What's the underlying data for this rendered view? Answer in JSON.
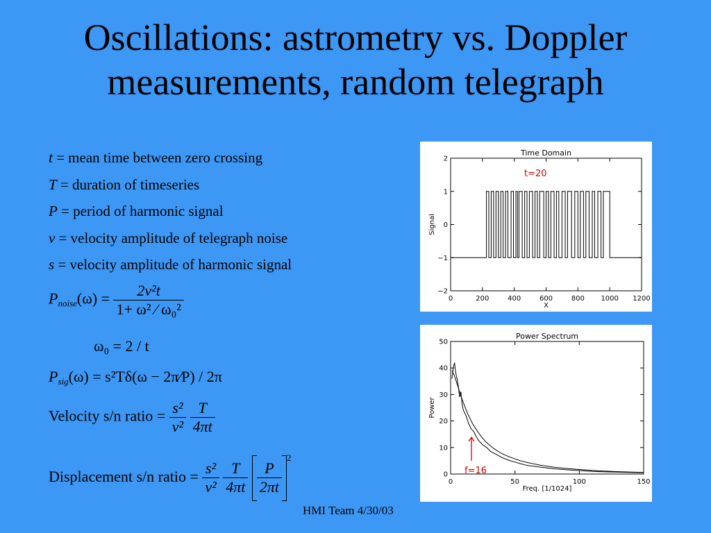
{
  "slide": {
    "title_line1": "Oscillations: astrometry vs. Doppler",
    "title_line2": "measurements, random telegraph",
    "footer": "HMI Team 4/30/03"
  },
  "definitions": [
    {
      "symbol": "t",
      "text": "= mean time between zero crossing"
    },
    {
      "symbol": "T",
      "text": "= duration of  timeseries"
    },
    {
      "symbol": "P",
      "text": "= period of  harmonic signal"
    },
    {
      "symbol": "v",
      "text": "= velocity amplitude of  telegraph noise"
    },
    {
      "symbol": "s",
      "text": "= velocity amplitude of  harmonic signal"
    }
  ],
  "equations": {
    "pnoise_lhs": "(ω) =",
    "pnoise_sub": "noise",
    "pnoise_num": "2v²t",
    "pnoise_den": "1+ ω² ⁄ ω₀²",
    "omega0": "ω₀ = 2 / t",
    "psig_sub": "sig",
    "psig_rhs": "(ω) = s²Tδ(ω − 2π⁄P) / 2π",
    "vel_label": "Velocity s/n ratio =",
    "vel_f1_num": "s²",
    "vel_f1_den": "v²",
    "vel_f2_num": "T",
    "vel_f2_den": "4πt",
    "disp_label": "Displacement s/n ratio =",
    "disp_f1_num": "s²",
    "disp_f1_den": "v²",
    "disp_f2_num": "T",
    "disp_f2_den": "4πt",
    "disp_f3_num": "P",
    "disp_f3_den": "2πt",
    "disp_exp": "2"
  },
  "chart_data": [
    {
      "type": "line",
      "title": "Time Domain",
      "xlabel": "X",
      "ylabel": "Signal",
      "xlim": [
        0,
        1200
      ],
      "ylim": [
        -2,
        2
      ],
      "xticks": [
        "0",
        "200",
        "400",
        "600",
        "800",
        "1000",
        "1200"
      ],
      "yticks": [
        "−2",
        "−1",
        "0",
        "1",
        "2"
      ],
      "annotation": "t=20",
      "annotation_color": "#d40000",
      "x": [
        0,
        225,
        225,
        240,
        240,
        255,
        255,
        270,
        270,
        285,
        285,
        300,
        300,
        315,
        315,
        330,
        330,
        345,
        345,
        360,
        360,
        380,
        380,
        395,
        395,
        410,
        410,
        420,
        420,
        430,
        430,
        450,
        450,
        465,
        465,
        480,
        480,
        495,
        495,
        515,
        515,
        530,
        530,
        545,
        545,
        560,
        560,
        585,
        585,
        600,
        600,
        615,
        615,
        630,
        630,
        650,
        650,
        665,
        665,
        680,
        680,
        700,
        700,
        720,
        720,
        735,
        735,
        760,
        760,
        780,
        780,
        800,
        800,
        815,
        815,
        835,
        835,
        850,
        850,
        870,
        870,
        890,
        890,
        905,
        905,
        925,
        925,
        945,
        945,
        960,
        960,
        1000,
        1000,
        1200
      ],
      "y": [
        -1,
        -1,
        1,
        1,
        -1,
        -1,
        1,
        1,
        -1,
        -1,
        1,
        1,
        -1,
        -1,
        1,
        1,
        -1,
        -1,
        1,
        1,
        -1,
        -1,
        1,
        1,
        -1,
        -1,
        1,
        1,
        -1,
        -1,
        1,
        1,
        -1,
        -1,
        1,
        1,
        -1,
        -1,
        1,
        1,
        -1,
        -1,
        1,
        1,
        -1,
        -1,
        1,
        1,
        -1,
        -1,
        1,
        1,
        -1,
        -1,
        1,
        1,
        -1,
        -1,
        1,
        1,
        -1,
        -1,
        1,
        1,
        -1,
        -1,
        1,
        1,
        -1,
        -1,
        1,
        1,
        -1,
        -1,
        1,
        1,
        -1,
        -1,
        1,
        1,
        -1,
        -1,
        1,
        1,
        -1,
        -1,
        1,
        1,
        -1,
        -1,
        1,
        1,
        -1,
        -1
      ]
    },
    {
      "type": "line",
      "title": "Power Spectrum",
      "xlabel": "Freq. [1/1024]",
      "ylabel": "Power",
      "xlim": [
        0,
        150
      ],
      "ylim": [
        0,
        50
      ],
      "xticks": [
        "0",
        "50",
        "100",
        "150"
      ],
      "yticks": [
        "0",
        "10",
        "20",
        "30",
        "40",
        "50"
      ],
      "annotation": "f=16",
      "annotation_color": "#d40000",
      "series": [
        {
          "x": [
            1,
            2,
            3,
            4,
            5,
            6,
            7,
            8,
            9,
            10,
            12,
            14,
            16,
            18,
            20,
            22,
            25,
            28,
            31,
            35,
            40,
            45,
            50,
            55,
            60,
            70,
            80,
            90,
            100,
            110,
            120,
            130,
            140,
            150
          ],
          "y": [
            36,
            40,
            42,
            38,
            36,
            33,
            29,
            31,
            26,
            24,
            22,
            19,
            17,
            16,
            14,
            12.5,
            11,
            10,
            8.5,
            7.5,
            6.2,
            5.2,
            4.5,
            3.8,
            3.2,
            2.6,
            2.0,
            1.6,
            1.3,
            1.0,
            0.8,
            0.7,
            0.6,
            0.5
          ]
        },
        {
          "x": [
            1,
            3,
            5,
            7,
            9,
            11,
            13,
            15,
            17,
            19,
            21,
            24,
            27,
            30,
            33,
            37,
            41,
            45,
            50,
            55,
            60,
            70,
            80,
            90,
            100,
            115,
            130,
            150
          ],
          "y": [
            39,
            37,
            34,
            31,
            28,
            25.5,
            23,
            21,
            19,
            17.5,
            16,
            14,
            12.3,
            11,
            9.8,
            8.5,
            7.4,
            6.6,
            5.7,
            4.9,
            4.3,
            3.3,
            2.6,
            2.1,
            1.7,
            1.2,
            0.9,
            0.6
          ]
        }
      ]
    }
  ]
}
